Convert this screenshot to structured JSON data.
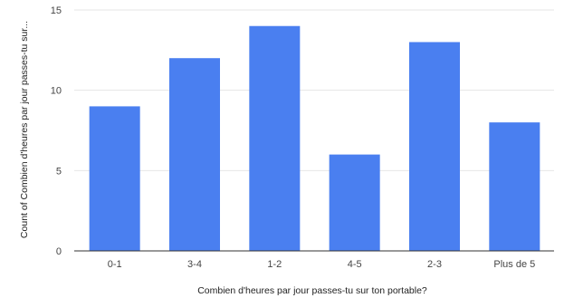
{
  "chart_data": {
    "type": "bar",
    "title": "",
    "xlabel": "Combien d'heures par jour passes-tu sur ton portable?",
    "ylabel": "Count of Combien d'heures par jour passes-tu sur...",
    "categories": [
      "0-1",
      "3-4",
      "1-2",
      "4-5",
      "2-3",
      "Plus de 5"
    ],
    "series": [
      {
        "values": [
          9,
          12,
          14,
          6,
          13,
          8
        ]
      }
    ],
    "ylim": [
      0,
      15
    ],
    "yticks": [
      "0",
      "5",
      "10",
      "15"
    ],
    "grid": true,
    "colors": {
      "bar": "#4a7ff0"
    }
  }
}
